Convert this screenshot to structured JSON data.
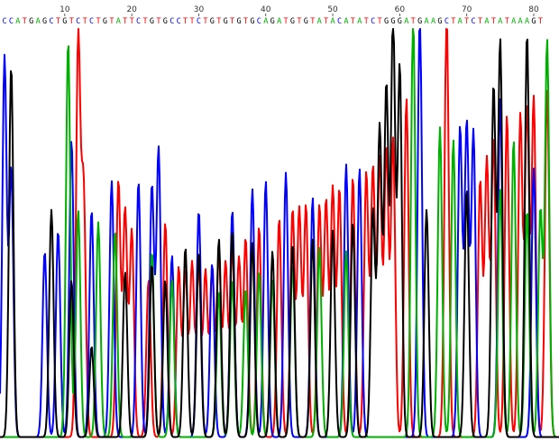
{
  "chart_data": {
    "type": "line",
    "title": "",
    "xlabel": "",
    "ylabel": "",
    "grid": false,
    "legend": "none",
    "position_ticks": [
      10,
      20,
      30,
      40,
      50,
      60,
      70,
      80
    ],
    "tick_labels": [
      "10",
      "20",
      "30",
      "40",
      "50",
      "60",
      "70",
      "80"
    ],
    "base_calls": "CCATGAGCTGTCTCTGTATTCTGTGCCTTCTGTGTGTGCAGATGTGTATACATATCTGGGATGAAGCTATCTATATAAAGT",
    "base_colors": {
      "A": "#00b000",
      "C": "#0000ff",
      "G": "#000000",
      "T": "#ff0000"
    },
    "series": [
      {
        "base": "T",
        "color": "#ff0000",
        "peaks": [
          [
            12,
            0.96
          ],
          [
            12.8,
            0.6
          ],
          [
            18,
            0.62
          ],
          [
            19,
            0.55
          ],
          [
            20,
            0.5
          ],
          [
            22.5,
            0.38
          ],
          [
            25,
            0.52
          ],
          [
            27,
            0.41
          ],
          [
            28,
            0.4
          ],
          [
            29,
            0.42
          ],
          [
            30,
            0.41
          ],
          [
            31,
            0.4
          ],
          [
            32,
            0.41
          ],
          [
            33,
            0.44
          ],
          [
            34,
            0.42
          ],
          [
            35,
            0.45
          ],
          [
            36,
            0.43
          ],
          [
            37,
            0.48
          ],
          [
            39,
            0.51
          ],
          [
            42,
            0.53
          ],
          [
            44,
            0.55
          ],
          [
            45,
            0.55
          ],
          [
            46,
            0.56
          ],
          [
            48,
            0.56
          ],
          [
            49,
            0.57
          ],
          [
            50,
            0.6
          ],
          [
            51,
            0.6
          ],
          [
            53,
            0.63
          ],
          [
            55,
            0.64
          ],
          [
            56,
            0.65
          ],
          [
            57,
            0.67
          ],
          [
            58,
            0.7
          ],
          [
            59,
            0.72
          ],
          [
            61,
            0.82
          ],
          [
            67,
            1.02
          ],
          [
            72,
            0.62
          ],
          [
            73,
            0.67
          ],
          [
            74,
            0.72
          ],
          [
            76,
            0.78
          ],
          [
            78,
            0.78
          ],
          [
            79,
            0.8
          ],
          [
            80,
            0.82
          ],
          [
            82,
            0.84
          ]
        ]
      },
      {
        "base": "C",
        "color": "#0000ff",
        "peaks": [
          [
            1,
            0.92
          ],
          [
            2,
            0.65
          ],
          [
            7,
            0.45
          ],
          [
            9,
            0.5
          ],
          [
            11,
            0.72
          ],
          [
            14,
            0.55
          ],
          [
            17,
            0.62
          ],
          [
            21,
            0.62
          ],
          [
            23,
            0.61
          ],
          [
            24,
            0.7
          ],
          [
            26,
            0.44
          ],
          [
            30,
            0.55
          ],
          [
            32,
            0.42
          ],
          [
            35,
            0.55
          ],
          [
            38,
            0.6
          ],
          [
            40,
            0.62
          ],
          [
            43,
            0.64
          ],
          [
            47,
            0.58
          ],
          [
            52,
            0.66
          ],
          [
            54,
            0.65
          ],
          [
            63,
            1.02
          ],
          [
            69,
            0.75
          ],
          [
            70,
            0.76
          ],
          [
            71,
            0.74
          ],
          [
            75,
            0.82
          ],
          [
            80,
            0.65
          ]
        ]
      },
      {
        "base": "A",
        "color": "#00b000",
        "peaks": [
          [
            10.5,
            0.96
          ],
          [
            12,
            0.55
          ],
          [
            15,
            0.52
          ],
          [
            17.5,
            0.5
          ],
          [
            23,
            0.45
          ],
          [
            26,
            0.38
          ],
          [
            33,
            0.35
          ],
          [
            35,
            0.38
          ],
          [
            37,
            0.36
          ],
          [
            39,
            0.4
          ],
          [
            41,
            0.38
          ],
          [
            44,
            0.42
          ],
          [
            48,
            0.46
          ],
          [
            52,
            0.45
          ],
          [
            62,
            1.02
          ],
          [
            66,
            0.75
          ],
          [
            68,
            0.72
          ],
          [
            75,
            0.6
          ],
          [
            77,
            0.72
          ],
          [
            79,
            0.55
          ],
          [
            81,
            0.55
          ],
          [
            82,
            0.96
          ]
        ]
      },
      {
        "base": "G",
        "color": "#000000",
        "peaks": [
          [
            2,
            0.9
          ],
          [
            8,
            0.55
          ],
          [
            11,
            0.38
          ],
          [
            14,
            0.22
          ],
          [
            19,
            0.4
          ],
          [
            23,
            0.42
          ],
          [
            25,
            0.38
          ],
          [
            28,
            0.46
          ],
          [
            30,
            0.45
          ],
          [
            33,
            0.48
          ],
          [
            35,
            0.5
          ],
          [
            38,
            0.47
          ],
          [
            41,
            0.45
          ],
          [
            44,
            0.47
          ],
          [
            47,
            0.48
          ],
          [
            50,
            0.5
          ],
          [
            53,
            0.52
          ],
          [
            56,
            0.55
          ],
          [
            57,
            0.75
          ],
          [
            58,
            0.85
          ],
          [
            59,
            1.02
          ],
          [
            60,
            0.9
          ],
          [
            64,
            0.55
          ],
          [
            70,
            0.6
          ],
          [
            74,
            0.85
          ],
          [
            75,
            0.96
          ],
          [
            79,
            0.98
          ]
        ]
      }
    ]
  }
}
